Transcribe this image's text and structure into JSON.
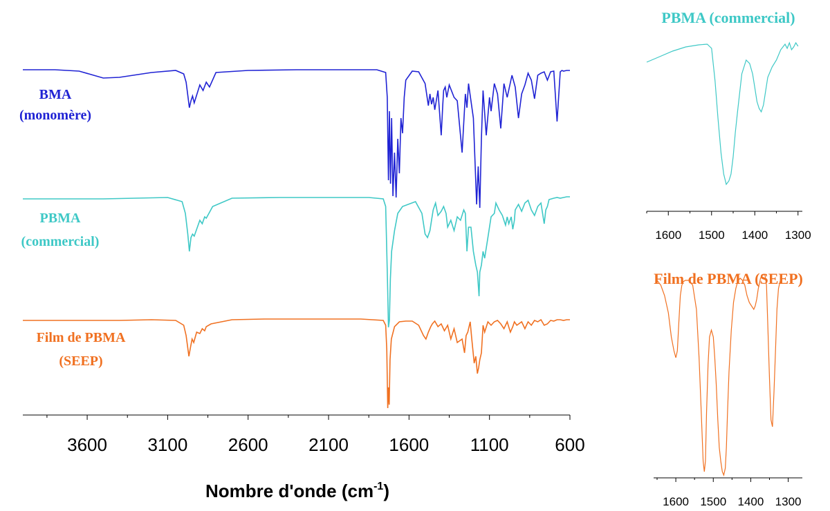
{
  "chart_data": [
    {
      "type": "line",
      "title": "",
      "xlabel": "Nombre d'onde (cm",
      "xlabel_superscript": "-1",
      "xlabel_close": ")",
      "xlim": [
        4000,
        600
      ],
      "x_ticks": [
        "3600",
        "3100",
        "2600",
        "2100",
        "1600",
        "1100",
        "600"
      ],
      "ylabel": "",
      "grid": false,
      "series": [
        {
          "name": "BMA (monomère)",
          "label_lines": [
            "BMA",
            "(monomère)"
          ],
          "color": "#1f22d4",
          "x": [
            4000,
            3800,
            3650,
            3560,
            3500,
            3400,
            3200,
            3050,
            3000,
            2985,
            2965,
            2955,
            2945,
            2935,
            2900,
            2880,
            2860,
            2840,
            2800,
            2600,
            2300,
            2000,
            1800,
            1745,
            1735,
            1728,
            1722,
            1715,
            1708,
            1700,
            1690,
            1680,
            1670,
            1660,
            1650,
            1640,
            1630,
            1620,
            1580,
            1540,
            1500,
            1480,
            1470,
            1460,
            1450,
            1440,
            1420,
            1400,
            1390,
            1385,
            1375,
            1365,
            1350,
            1320,
            1300,
            1270,
            1250,
            1240,
            1230,
            1200,
            1180,
            1170,
            1160,
            1150,
            1140,
            1120,
            1100,
            1090,
            1070,
            1050,
            1030,
            1010,
            990,
            960,
            940,
            920,
            900,
            880,
            860,
            840,
            820,
            800,
            780,
            760,
            740,
            720,
            700,
            680,
            660,
            650,
            640,
            620,
            600
          ],
          "y": [
            0,
            0,
            2,
            8,
            12,
            11,
            4,
            1,
            6,
            18,
            55,
            45,
            38,
            48,
            22,
            30,
            18,
            25,
            4,
            1,
            0,
            0,
            0,
            4,
            40,
            160,
            60,
            165,
            70,
            183,
            120,
            185,
            100,
            150,
            70,
            92,
            40,
            15,
            2,
            3,
            20,
            52,
            35,
            50,
            40,
            58,
            30,
            95,
            50,
            30,
            25,
            40,
            22,
            40,
            45,
            120,
            35,
            55,
            20,
            70,
            195,
            140,
            200,
            100,
            30,
            95,
            40,
            60,
            20,
            35,
            85,
            20,
            40,
            8,
            25,
            70,
            35,
            22,
            5,
            15,
            42,
            8,
            5,
            3,
            15,
            3,
            2,
            75,
            3,
            1,
            2,
            1,
            1
          ]
        },
        {
          "name": "PBMA (commercial)",
          "label_lines": [
            "PBMA",
            "(commercial)"
          ],
          "color": "#3ec8c6",
          "x": [
            4000,
            3700,
            3500,
            3300,
            3100,
            3010,
            2990,
            2975,
            2965,
            2955,
            2945,
            2935,
            2900,
            2885,
            2870,
            2860,
            2820,
            2700,
            2400,
            2100,
            1850,
            1760,
            1745,
            1738,
            1732,
            1728,
            1722,
            1716,
            1708,
            1690,
            1670,
            1640,
            1560,
            1520,
            1500,
            1485,
            1470,
            1460,
            1450,
            1435,
            1420,
            1400,
            1385,
            1370,
            1360,
            1340,
            1320,
            1300,
            1280,
            1260,
            1250,
            1240,
            1230,
            1215,
            1200,
            1185,
            1175,
            1165,
            1160,
            1150,
            1140,
            1130,
            1110,
            1090,
            1070,
            1060,
            1040,
            1020,
            1000,
            990,
            980,
            965,
            955,
            945,
            940,
            920,
            900,
            880,
            860,
            840,
            820,
            800,
            780,
            760,
            750,
            740,
            730,
            700,
            680,
            660,
            640,
            620,
            600
          ],
          "y": [
            4,
            4,
            4,
            3,
            2,
            8,
            25,
            55,
            80,
            60,
            55,
            58,
            35,
            40,
            30,
            32,
            15,
            3,
            2,
            2,
            2,
            4,
            15,
            80,
            140,
            190,
            180,
            120,
            80,
            50,
            25,
            15,
            8,
            25,
            55,
            60,
            50,
            35,
            20,
            10,
            28,
            22,
            15,
            25,
            45,
            35,
            50,
            30,
            35,
            20,
            25,
            80,
            45,
            45,
            80,
            100,
            110,
            145,
            110,
            100,
            80,
            90,
            60,
            30,
            25,
            10,
            20,
            28,
            42,
            30,
            40,
            30,
            48,
            35,
            20,
            12,
            22,
            10,
            6,
            20,
            28,
            15,
            10,
            40,
            20,
            15,
            5,
            3,
            2,
            3,
            2,
            1,
            1
          ]
        },
        {
          "name": "Film de PBMA (SEEP)",
          "label_lines": [
            "Film de PBMA",
            "(SEEP)"
          ],
          "color": "#f07020",
          "x": [
            4000,
            3700,
            3400,
            3200,
            3050,
            3000,
            2985,
            2968,
            2958,
            2948,
            2938,
            2920,
            2900,
            2885,
            2870,
            2860,
            2830,
            2700,
            2500,
            2200,
            1900,
            1760,
            1745,
            1738,
            1732,
            1728,
            1723,
            1718,
            1710,
            1690,
            1660,
            1620,
            1580,
            1540,
            1510,
            1495,
            1480,
            1465,
            1455,
            1440,
            1420,
            1400,
            1380,
            1360,
            1340,
            1320,
            1300,
            1270,
            1255,
            1245,
            1235,
            1220,
            1210,
            1195,
            1185,
            1175,
            1168,
            1160,
            1150,
            1140,
            1130,
            1110,
            1090,
            1070,
            1050,
            1030,
            1010,
            990,
            970,
            955,
            945,
            930,
            900,
            880,
            860,
            840,
            820,
            800,
            780,
            760,
            740,
            720,
            700,
            680,
            660,
            640,
            620,
            600
          ],
          "y": [
            3,
            3,
            3,
            2,
            3,
            10,
            25,
            55,
            42,
            30,
            35,
            20,
            22,
            15,
            18,
            12,
            8,
            2,
            1,
            1,
            1,
            3,
            10,
            45,
            130,
            100,
            125,
            60,
            30,
            12,
            5,
            4,
            4,
            10,
            25,
            30,
            20,
            12,
            8,
            4,
            12,
            8,
            18,
            10,
            30,
            15,
            35,
            30,
            50,
            25,
            20,
            5,
            30,
            65,
            55,
            80,
            72,
            60,
            50,
            10,
            20,
            5,
            10,
            5,
            3,
            8,
            15,
            5,
            20,
            12,
            5,
            10,
            5,
            15,
            5,
            10,
            3,
            5,
            2,
            10,
            8,
            3,
            4,
            2,
            2,
            3,
            2,
            2
          ]
        }
      ]
    },
    {
      "type": "line",
      "title": "PBMA (commercial)",
      "xlabel": "",
      "xlim": [
        1650,
        1290
      ],
      "x_ticks": [
        "1600",
        "1500",
        "1400",
        "1300"
      ],
      "grid": false,
      "series": [
        {
          "color": "#3ec8c6",
          "x": [
            1650,
            1620,
            1590,
            1560,
            1530,
            1510,
            1500,
            1492,
            1485,
            1478,
            1472,
            1466,
            1460,
            1455,
            1450,
            1445,
            1440,
            1430,
            1420,
            1412,
            1405,
            1400,
            1395,
            1390,
            1385,
            1380,
            1375,
            1370,
            1360,
            1350,
            1340,
            1330,
            1325,
            1320,
            1315,
            1310,
            1305,
            1300
          ],
          "y": [
            28,
            20,
            12,
            6,
            3,
            2,
            8,
            55,
            110,
            160,
            190,
            205,
            200,
            190,
            165,
            130,
            100,
            45,
            25,
            30,
            45,
            65,
            85,
            95,
            100,
            90,
            70,
            50,
            35,
            25,
            10,
            2,
            8,
            0,
            10,
            6,
            0,
            5
          ]
        }
      ]
    },
    {
      "type": "line",
      "title": "Film de PBMA (SEEP)",
      "xlabel": "",
      "xlim": [
        1650,
        1290
      ],
      "x_ticks": [
        "1600",
        "1500",
        "1400",
        "1300"
      ],
      "grid": false,
      "series": [
        {
          "color": "#f07020",
          "x": [
            1650,
            1640,
            1630,
            1620,
            1612,
            1605,
            1600,
            1596,
            1592,
            1588,
            1584,
            1580,
            1575,
            1565,
            1555,
            1545,
            1538,
            1532,
            1527,
            1524,
            1521,
            1518,
            1514,
            1510,
            1505,
            1500,
            1496,
            1492,
            1488,
            1484,
            1480,
            1476,
            1472,
            1468,
            1465,
            1462,
            1458,
            1452,
            1446,
            1440,
            1434,
            1428,
            1422,
            1416,
            1410,
            1404,
            1398,
            1392,
            1388,
            1384,
            1380,
            1374,
            1368,
            1362,
            1358,
            1354,
            1350,
            1346,
            1342,
            1338,
            1334,
            1330,
            1326,
            1322,
            1318
          ],
          "y": [
            8,
            15,
            30,
            55,
            90,
            110,
            120,
            110,
            70,
            30,
            15,
            10,
            8,
            8,
            15,
            50,
            120,
            200,
            270,
            285,
            270,
            200,
            130,
            90,
            80,
            90,
            120,
            160,
            210,
            250,
            270,
            285,
            290,
            280,
            250,
            200,
            140,
            80,
            40,
            20,
            8,
            5,
            8,
            15,
            30,
            40,
            45,
            50,
            45,
            35,
            20,
            5,
            0,
            0,
            15,
            80,
            150,
            210,
            220,
            170,
            110,
            50,
            20,
            10,
            5
          ]
        }
      ]
    }
  ]
}
